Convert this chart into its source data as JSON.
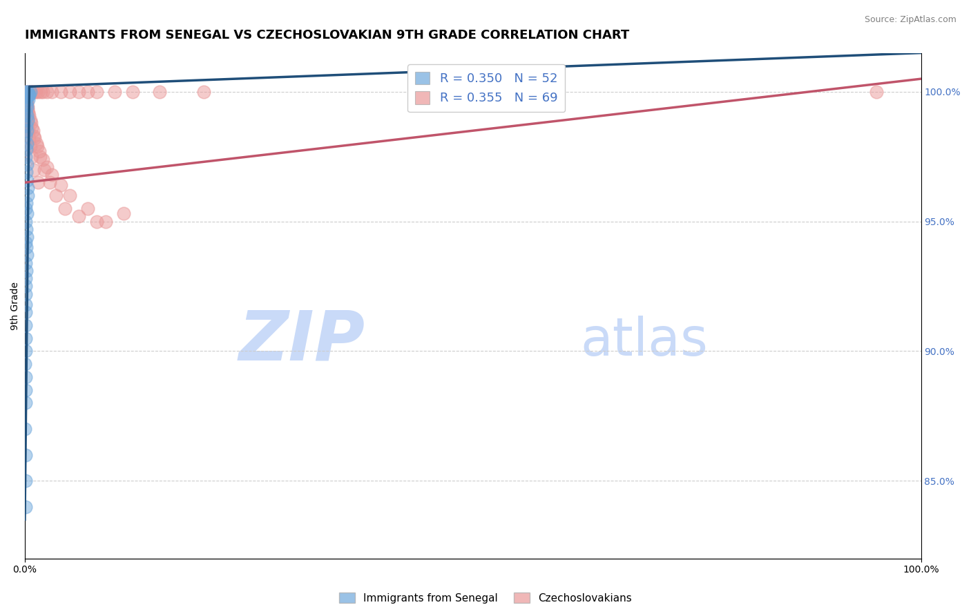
{
  "title": "IMMIGRANTS FROM SENEGAL VS CZECHOSLOVAKIAN 9TH GRADE CORRELATION CHART",
  "source": "Source: ZipAtlas.com",
  "ylabel": "9th Grade",
  "xlim": [
    0.0,
    100.0
  ],
  "ylim": [
    82.0,
    101.5
  ],
  "right_yticks": [
    85.0,
    90.0,
    95.0,
    100.0
  ],
  "right_ytick_labels": [
    "85.0%",
    "90.0%",
    "95.0%",
    "100.0%"
  ],
  "legend_r_blue": "R = 0.350",
  "legend_n_blue": "N = 52",
  "legend_r_pink": "R = 0.355",
  "legend_n_pink": "N = 69",
  "blue_color": "#6fa8dc",
  "pink_color": "#ea9999",
  "blue_line_color": "#1f4e79",
  "pink_line_color": "#c0546a",
  "watermark_zip": "ZIP",
  "watermark_atlas": "atlas",
  "watermark_color": "#c9daf8",
  "blue_scatter_x": [
    0.15,
    0.25,
    0.35,
    0.5,
    0.6,
    0.2,
    0.3,
    0.4,
    0.5,
    0.15,
    0.25,
    0.1,
    0.2,
    0.3,
    0.15,
    0.25,
    0.1,
    0.2,
    0.15,
    0.1,
    0.2,
    0.15,
    0.25,
    0.3,
    0.35,
    0.15,
    0.1,
    0.2,
    0.1,
    0.15,
    0.2,
    0.1,
    0.15,
    0.2,
    0.1,
    0.15,
    0.05,
    0.1,
    0.05,
    0.1,
    0.05,
    0.05,
    0.08,
    0.06,
    0.04,
    0.07,
    0.05,
    0.06,
    0.04,
    0.08,
    0.05,
    0.06
  ],
  "blue_scatter_y": [
    100.0,
    100.0,
    100.0,
    99.9,
    100.0,
    99.8,
    99.8,
    99.7,
    99.9,
    99.5,
    99.4,
    99.2,
    99.1,
    98.9,
    98.7,
    98.5,
    98.3,
    98.0,
    97.8,
    97.5,
    97.2,
    96.9,
    96.6,
    96.3,
    96.0,
    95.7,
    95.5,
    95.3,
    95.0,
    94.7,
    94.4,
    94.2,
    94.0,
    93.7,
    93.4,
    93.1,
    92.8,
    92.5,
    92.2,
    91.8,
    91.5,
    91.0,
    90.5,
    90.0,
    89.5,
    89.0,
    88.5,
    88.0,
    87.0,
    86.0,
    85.0,
    84.0
  ],
  "pink_scatter_x": [
    0.1,
    0.2,
    0.3,
    0.4,
    0.5,
    0.6,
    0.7,
    0.8,
    0.9,
    1.0,
    1.2,
    1.5,
    1.8,
    2.0,
    2.5,
    3.0,
    4.0,
    5.0,
    6.0,
    7.0,
    8.0,
    10.0,
    12.0,
    15.0,
    20.0,
    0.15,
    0.25,
    0.35,
    0.5,
    0.7,
    0.9,
    1.1,
    1.4,
    1.7,
    2.2,
    2.8,
    3.5,
    4.5,
    6.0,
    8.0,
    11.0,
    0.2,
    0.3,
    0.4,
    0.6,
    0.8,
    1.0,
    1.3,
    1.6,
    2.0,
    2.5,
    3.0,
    4.0,
    5.0,
    7.0,
    9.0,
    0.1,
    0.15,
    0.2,
    0.25,
    0.3,
    0.35,
    0.4,
    0.5,
    0.6,
    0.8,
    1.0,
    1.5,
    95.0
  ],
  "pink_scatter_y": [
    100.0,
    100.0,
    100.0,
    100.0,
    100.0,
    100.0,
    100.0,
    100.0,
    100.0,
    100.0,
    100.0,
    100.0,
    100.0,
    100.0,
    100.0,
    100.0,
    100.0,
    100.0,
    100.0,
    100.0,
    100.0,
    100.0,
    100.0,
    100.0,
    100.0,
    99.7,
    99.5,
    99.3,
    99.1,
    98.8,
    98.5,
    98.2,
    97.9,
    97.5,
    97.0,
    96.5,
    96.0,
    95.5,
    95.2,
    95.0,
    95.3,
    99.6,
    99.4,
    99.2,
    98.9,
    98.6,
    98.3,
    98.0,
    97.7,
    97.4,
    97.1,
    96.8,
    96.4,
    96.0,
    95.5,
    95.0,
    99.8,
    99.6,
    99.4,
    99.2,
    99.0,
    98.8,
    98.5,
    98.2,
    97.9,
    97.5,
    97.0,
    96.5,
    100.0
  ],
  "blue_trend": [
    0.0,
    0.5,
    100.0
  ],
  "blue_trend_y": [
    83.5,
    100.2,
    101.5
  ],
  "pink_trend_x": [
    0.0,
    100.0
  ],
  "pink_trend_y": [
    96.5,
    100.5
  ],
  "grid_color": "#cccccc",
  "background_color": "#ffffff",
  "title_fontsize": 13,
  "label_fontsize": 10,
  "tick_fontsize": 10,
  "legend_fontsize": 13
}
